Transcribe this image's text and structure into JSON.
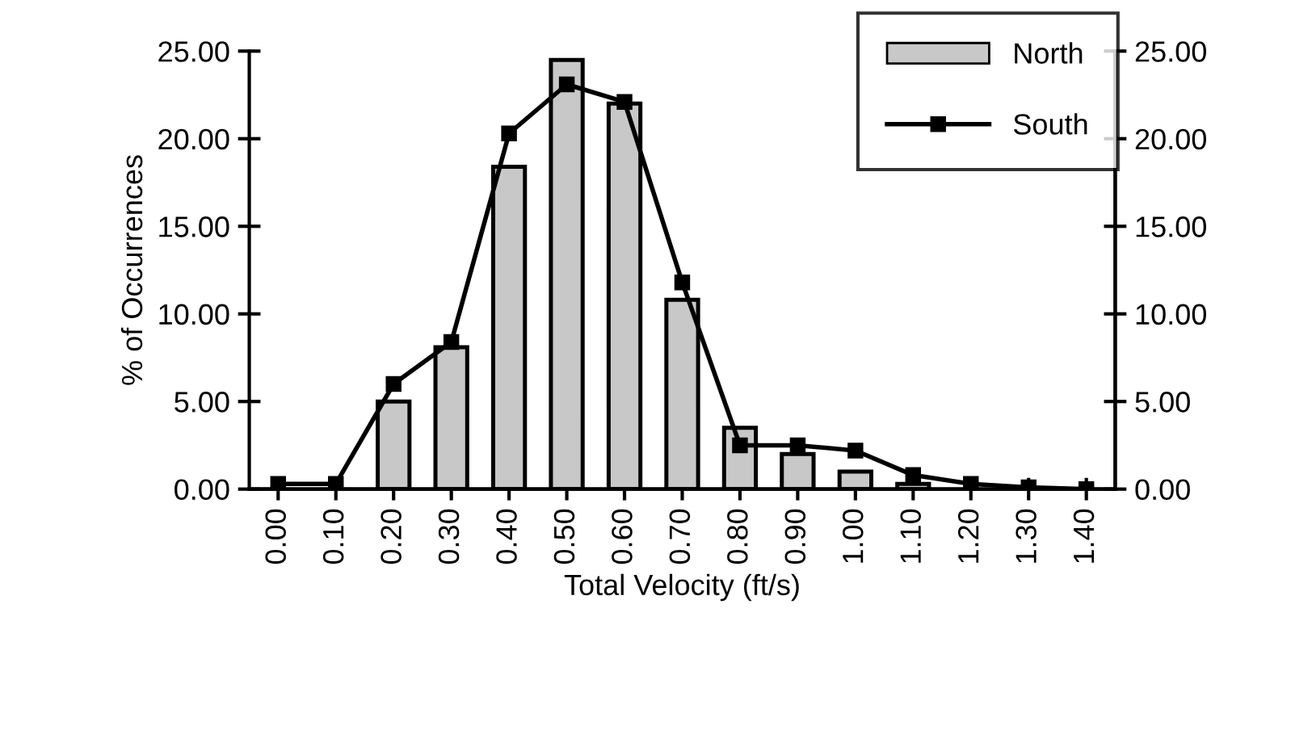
{
  "chart_data": {
    "type": "bar",
    "xlabel": "Total Velocity (ft/s)",
    "ylabel": "% of Occurrences",
    "categories": [
      "0.00",
      "0.10",
      "0.20",
      "0.30",
      "0.40",
      "0.50",
      "0.60",
      "0.70",
      "0.80",
      "0.90",
      "1.00",
      "1.10",
      "1.20",
      "1.30",
      "1.40"
    ],
    "series": [
      {
        "name": "North",
        "color": "#c8c8c8",
        "values": [
          0,
          0,
          5.0,
          8.1,
          18.4,
          24.5,
          22.0,
          10.8,
          3.5,
          2.0,
          1.0,
          0.3,
          null,
          0,
          0
        ]
      },
      {
        "name": "South",
        "type": "line",
        "color": "#000000",
        "values": [
          0.3,
          0.3,
          6.0,
          8.4,
          20.3,
          23.1,
          22.1,
          11.8,
          2.5,
          2.5,
          2.2,
          0.8,
          0.3,
          0.1,
          0
        ]
      }
    ],
    "ylim": [
      0,
      25
    ],
    "yticks": [
      {
        "value": 0,
        "label": "0.00"
      },
      {
        "value": 5,
        "label": "5.00"
      },
      {
        "value": 10,
        "label": "10.00"
      },
      {
        "value": 15,
        "label": "15.00"
      },
      {
        "value": 20,
        "label": "20.00"
      },
      {
        "value": 25,
        "label": "25.00"
      }
    ],
    "y2lim": [
      0,
      25
    ],
    "y2ticks": [
      {
        "value": 0,
        "label": "0.00"
      },
      {
        "value": 5,
        "label": "5.00"
      },
      {
        "value": 10,
        "label": "10.00"
      },
      {
        "value": 15,
        "label": "15.00"
      },
      {
        "value": 20,
        "label": "20.00"
      },
      {
        "value": 25,
        "label": "25.00"
      }
    ],
    "marker": "square",
    "line_style": "solid",
    "legend": "top right",
    "grid": false
  }
}
